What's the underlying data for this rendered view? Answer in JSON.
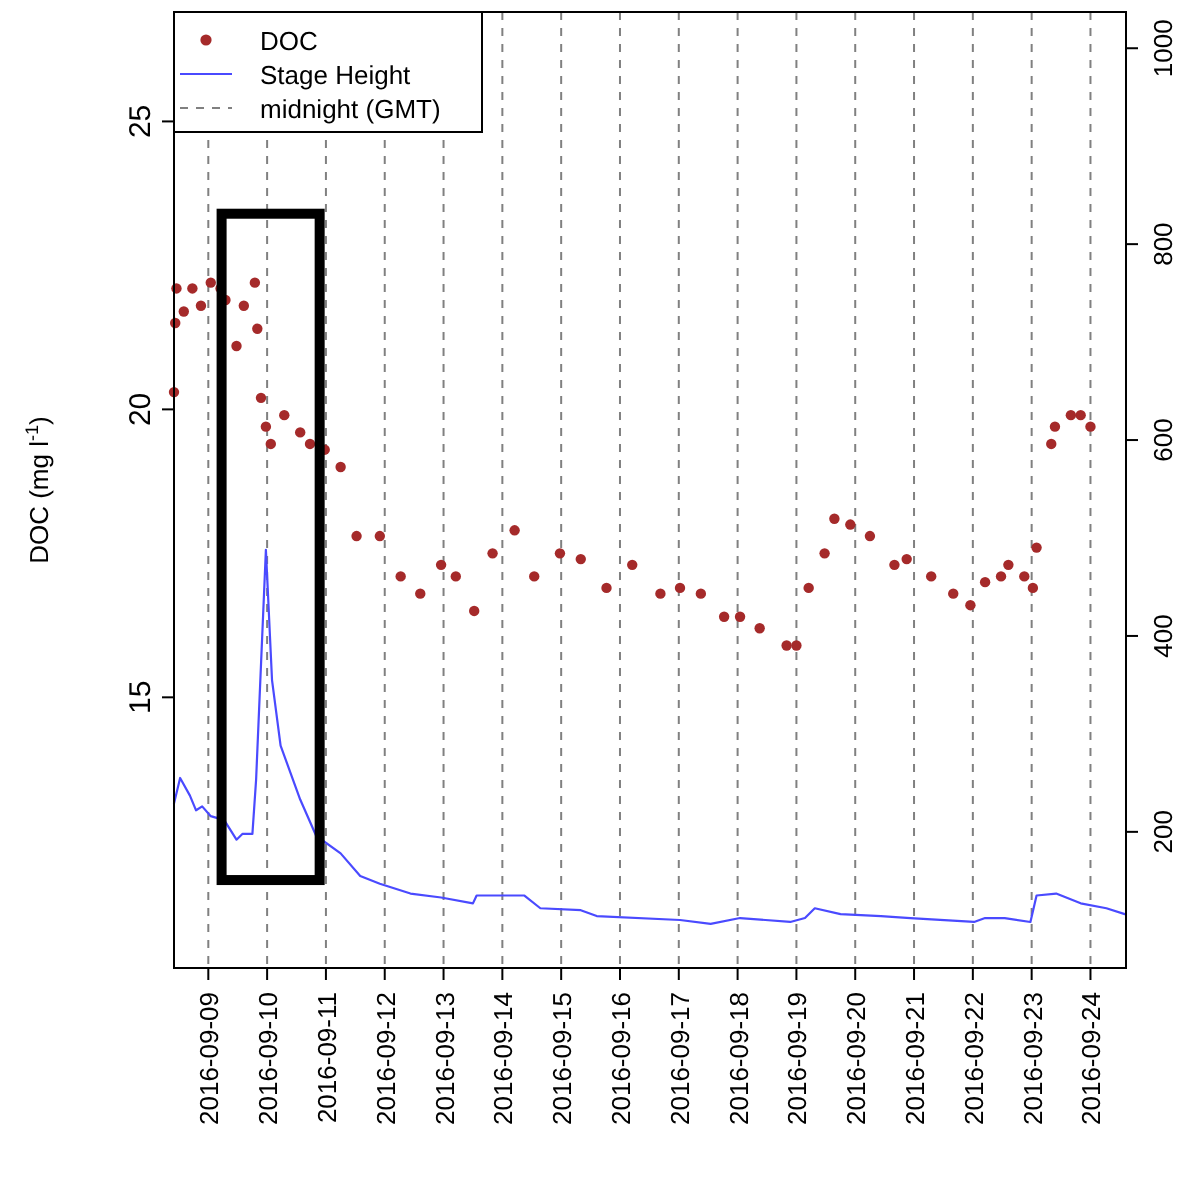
{
  "chart_data": {
    "type": "scatter",
    "ylabel": "DOC (mg l$^{-1}$)",
    "xlim": [
      "2016-09-08T10:00",
      "2016-09-24T14:30"
    ],
    "xticks": [
      "2016-09-09",
      "2016-09-10",
      "2016-09-11",
      "2016-09-12",
      "2016-09-13",
      "2016-09-14",
      "2016-09-15",
      "2016-09-16",
      "2016-09-17",
      "2016-09-18",
      "2016-09-19",
      "2016-09-20",
      "2016-09-21",
      "2016-09-22",
      "2016-09-23",
      "2016-09-24"
    ],
    "ylim": [
      10.3,
      26.9
    ],
    "yticks": [
      15,
      20,
      25
    ],
    "y2lim": [
      61,
      1037
    ],
    "y2ticks": [
      200,
      400,
      600,
      800,
      1000
    ],
    "legend": "top left",
    "series": [
      {
        "name": "DOC",
        "marker": "circle",
        "color": "#a52a2a",
        "x": [
          "2016-09-08T10:00",
          "2016-09-08T10:30",
          "2016-09-08T11:00",
          "2016-09-08T14:00",
          "2016-09-08T17:30",
          "2016-09-08T21:00",
          "2016-09-09T01:00",
          "2016-09-09T05:00",
          "2016-09-09T07:00",
          "2016-09-09T11:30",
          "2016-09-09T14:30",
          "2016-09-09T19:00",
          "2016-09-09T20:00",
          "2016-09-09T21:30",
          "2016-09-09T23:30",
          "2016-09-10T01:30",
          "2016-09-10T07:00",
          "2016-09-10T13:30",
          "2016-09-10T17:30",
          "2016-09-10T23:30",
          "2016-09-11T06:00",
          "2016-09-11T12:30",
          "2016-09-11T22:00",
          "2016-09-12T06:30",
          "2016-09-12T14:30",
          "2016-09-12T23:00",
          "2016-09-13T05:00",
          "2016-09-13T12:30",
          "2016-09-13T20:00",
          "2016-09-14T05:00",
          "2016-09-14T13:00",
          "2016-09-14T23:30",
          "2016-09-15T08:00",
          "2016-09-15T18:30",
          "2016-09-16T05:00",
          "2016-09-16T16:30",
          "2016-09-17T00:30",
          "2016-09-17T09:00",
          "2016-09-17T18:30",
          "2016-09-18T01:00",
          "2016-09-18T09:00",
          "2016-09-18T20:00",
          "2016-09-19T00:00",
          "2016-09-19T05:00",
          "2016-09-19T11:30",
          "2016-09-19T15:30",
          "2016-09-19T22:00",
          "2016-09-20T06:00",
          "2016-09-20T16:00",
          "2016-09-20T21:00",
          "2016-09-21T07:00",
          "2016-09-21T16:00",
          "2016-09-21T23:00",
          "2016-09-22T05:00",
          "2016-09-22T11:30",
          "2016-09-22T14:30",
          "2016-09-22T21:00",
          "2016-09-23T00:30",
          "2016-09-23T02:00",
          "2016-09-23T08:00",
          "2016-09-23T09:30",
          "2016-09-23T16:00",
          "2016-09-23T20:00",
          "2016-09-24T00:00"
        ],
        "values": [
          20.3,
          21.5,
          22.1,
          21.7,
          22.1,
          21.8,
          22.2,
          22.1,
          21.9,
          21.1,
          21.8,
          22.2,
          21.4,
          20.2,
          19.7,
          19.4,
          19.9,
          19.6,
          19.4,
          19.3,
          19.0,
          17.8,
          17.8,
          17.1,
          16.8,
          17.3,
          17.1,
          16.5,
          17.5,
          17.9,
          17.1,
          17.5,
          17.4,
          16.9,
          17.3,
          16.8,
          16.9,
          16.8,
          16.4,
          16.4,
          16.2,
          15.9,
          15.9,
          16.9,
          17.5,
          18.1,
          18.0,
          17.8,
          17.3,
          17.4,
          17.1,
          16.8,
          16.6,
          17.0,
          17.1,
          17.3,
          17.1,
          16.9,
          17.6,
          19.4,
          19.7,
          19.9,
          19.9,
          19.7
        ]
      },
      {
        "name": "Stage Height",
        "type": "line",
        "marker": "none",
        "axis": "y2",
        "color": "#4a4aff",
        "line_style": "solid",
        "x": [
          "2016-09-08T10:00",
          "2016-09-08T12:30",
          "2016-09-08T16:30",
          "2016-09-08T19:00",
          "2016-09-08T21:30",
          "2016-09-09T01:00",
          "2016-09-09T06:30",
          "2016-09-09T11:30",
          "2016-09-09T14:00",
          "2016-09-09T18:00",
          "2016-09-09T19:30",
          "2016-09-09T23:30",
          "2016-09-10T02:00",
          "2016-09-10T05:30",
          "2016-09-10T13:30",
          "2016-09-10T20:00",
          "2016-09-11T06:00",
          "2016-09-11T14:00",
          "2016-09-11T22:00",
          "2016-09-12T10:30",
          "2016-09-12T23:00",
          "2016-09-13T12:00",
          "2016-09-13T13:30",
          "2016-09-14T09:00",
          "2016-09-14T15:30",
          "2016-09-15T08:00",
          "2016-09-15T14:30",
          "2016-09-17T00:30",
          "2016-09-17T13:00",
          "2016-09-18T01:00",
          "2016-09-18T21:30",
          "2016-09-19T03:30",
          "2016-09-19T07:30",
          "2016-09-19T18:00",
          "2016-09-20T10:30",
          "2016-09-20T22:30",
          "2016-09-22T00:30",
          "2016-09-22T05:00",
          "2016-09-22T13:00",
          "2016-09-22T23:30",
          "2016-09-23T02:00",
          "2016-09-23T10:00",
          "2016-09-23T20:00",
          "2016-09-24T06:30",
          "2016-09-24T14:00"
        ],
        "values": [
          229,
          255,
          237,
          222,
          226,
          216,
          212,
          192,
          198,
          198,
          253,
          488,
          355,
          288,
          233,
          196,
          178,
          155,
          147,
          137,
          133,
          127,
          135,
          135,
          122,
          120,
          114,
          110,
          106,
          112,
          108,
          112,
          122,
          116,
          114,
          112,
          108,
          112,
          112,
          108,
          135,
          137,
          127,
          122,
          116
        ]
      }
    ],
    "ref_lines": [
      {
        "axis": "x",
        "value": "2016-09-09",
        "label": "midnight (GMT)",
        "color": "#808080",
        "line_style": "dashed"
      },
      {
        "axis": "x",
        "value": "2016-09-10",
        "color": "#808080",
        "line_style": "dashed"
      },
      {
        "axis": "x",
        "value": "2016-09-11",
        "color": "#808080",
        "line_style": "dashed"
      },
      {
        "axis": "x",
        "value": "2016-09-12",
        "color": "#808080",
        "line_style": "dashed"
      },
      {
        "axis": "x",
        "value": "2016-09-13",
        "color": "#808080",
        "line_style": "dashed"
      },
      {
        "axis": "x",
        "value": "2016-09-14",
        "color": "#808080",
        "line_style": "dashed"
      },
      {
        "axis": "x",
        "value": "2016-09-15",
        "color": "#808080",
        "line_style": "dashed"
      },
      {
        "axis": "x",
        "value": "2016-09-16",
        "color": "#808080",
        "line_style": "dashed"
      },
      {
        "axis": "x",
        "value": "2016-09-17",
        "color": "#808080",
        "line_style": "dashed"
      },
      {
        "axis": "x",
        "value": "2016-09-18",
        "color": "#808080",
        "line_style": "dashed"
      },
      {
        "axis": "x",
        "value": "2016-09-19",
        "color": "#808080",
        "line_style": "dashed"
      },
      {
        "axis": "x",
        "value": "2016-09-20",
        "color": "#808080",
        "line_style": "dashed"
      },
      {
        "axis": "x",
        "value": "2016-09-21",
        "color": "#808080",
        "line_style": "dashed"
      },
      {
        "axis": "x",
        "value": "2016-09-22",
        "color": "#808080",
        "line_style": "dashed"
      },
      {
        "axis": "x",
        "value": "2016-09-23",
        "color": "#808080",
        "line_style": "dashed"
      },
      {
        "axis": "x",
        "value": "2016-09-24",
        "color": "#808080",
        "line_style": "dashed"
      }
    ]
  }
}
